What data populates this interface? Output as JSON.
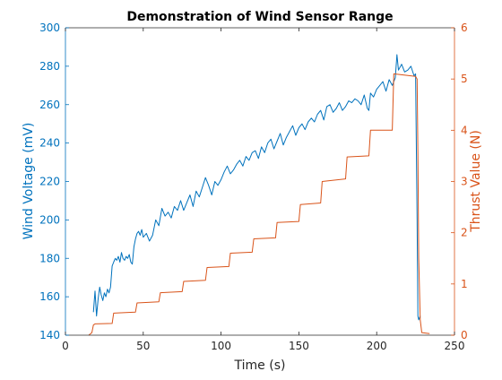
{
  "chart_data": {
    "type": "line",
    "title": "Demonstration of Wind Sensor Range",
    "xlabel": "Time (s)",
    "ylabel_left": "Wind Voltage (mV)",
    "ylabel_right": "Thrust Value (N)",
    "xlim": [
      0,
      250
    ],
    "ylim_left": [
      140,
      300
    ],
    "ylim_right": [
      0,
      6
    ],
    "x_ticks": [
      "0",
      "50",
      "100",
      "150",
      "200",
      "250"
    ],
    "y_left_ticks": [
      "140",
      "160",
      "180",
      "200",
      "220",
      "240",
      "260",
      "280",
      "300"
    ],
    "y_right_ticks": [
      "0",
      "1",
      "2",
      "3",
      "4",
      "5",
      "6"
    ],
    "grid": false,
    "colors": {
      "left_axis": "#0072BD",
      "right_axis": "#D95319",
      "axes": "#262626"
    },
    "series": [
      {
        "axis": "left",
        "color": "#0072BD",
        "x": [
          18,
          19,
          20,
          21,
          22,
          23,
          24,
          25,
          26,
          27,
          28,
          29,
          30,
          31,
          32,
          33,
          34,
          35,
          36,
          37,
          38,
          39,
          40,
          41,
          42,
          43,
          44,
          45,
          46,
          47,
          48,
          49,
          50,
          52,
          54,
          56,
          58,
          60,
          62,
          64,
          66,
          68,
          70,
          72,
          74,
          76,
          78,
          80,
          82,
          84,
          86,
          88,
          90,
          92,
          94,
          96,
          98,
          100,
          102,
          104,
          106,
          108,
          110,
          112,
          114,
          116,
          118,
          120,
          122,
          124,
          126,
          128,
          130,
          132,
          134,
          136,
          138,
          140,
          142,
          144,
          146,
          148,
          150,
          152,
          154,
          156,
          158,
          160,
          162,
          164,
          166,
          168,
          170,
          172,
          174,
          176,
          178,
          180,
          182,
          184,
          186,
          188,
          190,
          192,
          194,
          195,
          196,
          198,
          200,
          202,
          204,
          206,
          208,
          210,
          212,
          213,
          214,
          216,
          218,
          220,
          222,
          224,
          225,
          226,
          226.5,
          227,
          228
        ],
        "y": [
          152,
          163,
          150,
          159,
          165,
          161,
          158,
          162,
          160,
          164,
          162,
          165,
          176,
          178,
          180,
          179,
          181,
          178,
          183,
          180,
          179,
          181,
          180,
          182,
          178,
          177,
          186,
          190,
          193,
          194,
          192,
          195,
          191,
          193,
          189,
          192,
          200,
          197,
          206,
          202,
          204,
          201,
          207,
          205,
          210,
          205,
          209,
          213,
          207,
          215,
          212,
          217,
          222,
          218,
          213,
          220,
          218,
          221,
          225,
          228,
          224,
          226,
          229,
          231,
          228,
          233,
          231,
          235,
          236,
          232,
          238,
          235,
          240,
          242,
          237,
          241,
          245,
          239,
          243,
          246,
          249,
          244,
          248,
          250,
          247,
          251,
          253,
          251,
          255,
          257,
          252,
          259,
          260,
          256,
          258,
          261,
          257,
          259,
          262,
          261,
          263,
          262,
          260,
          265,
          258,
          257,
          266,
          264,
          268,
          270,
          272,
          267,
          273,
          270,
          274,
          286,
          278,
          281,
          277,
          278,
          280,
          275,
          276,
          200,
          150,
          148,
          150
        ]
      },
      {
        "axis": "right",
        "color": "#D95319",
        "x": [
          15,
          17,
          18,
          19,
          30,
          31,
          45,
          46,
          60,
          61,
          75,
          76,
          90,
          91,
          105,
          106,
          120,
          121,
          135,
          136,
          150,
          151,
          164,
          165,
          180,
          181,
          195,
          196,
          210,
          211,
          225,
          226,
          226.5,
          227,
          228,
          229,
          234
        ],
        "y": [
          0.0,
          0.05,
          0.2,
          0.22,
          0.23,
          0.43,
          0.45,
          0.63,
          0.65,
          0.83,
          0.85,
          1.05,
          1.07,
          1.32,
          1.34,
          1.6,
          1.62,
          1.88,
          1.9,
          2.2,
          2.22,
          2.55,
          2.58,
          3.0,
          3.05,
          3.48,
          3.5,
          4.0,
          4.0,
          5.1,
          5.05,
          5.0,
          3.5,
          1.5,
          0.3,
          0.05,
          0.03
        ]
      }
    ]
  }
}
